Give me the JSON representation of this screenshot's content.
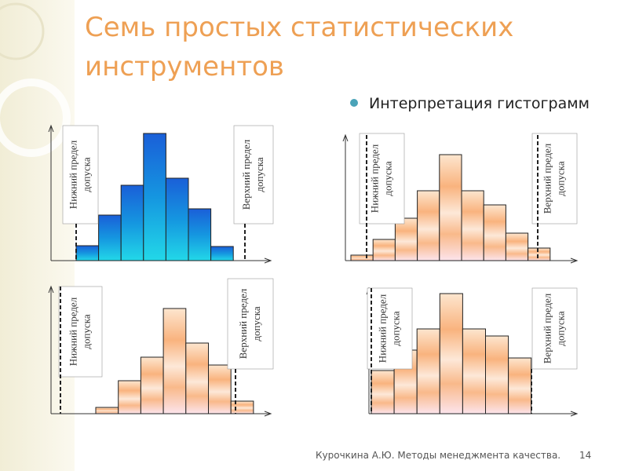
{
  "title": [
    "Семь простых статистических",
    "инструментов"
  ],
  "bullet": "Интерпретация гистограмм",
  "footer": "Курочкина А.Ю. Методы менеджмента качества.",
  "page_number": 14,
  "histograms": [
    {
      "values": [
        1.9,
        5.8,
        9.6,
        16.2,
        10.5,
        6.6,
        1.8
      ],
      "ylim": [
        0,
        17.2
      ],
      "color": "blue",
      "lower_limit_label": [
        "Нижний предел",
        "допуска"
      ],
      "upper_limit_label": [
        "Верхний предел",
        "допуска"
      ]
    },
    {
      "values": [
        0.7,
        2.7,
        5.4,
        8.9,
        13.5,
        8.9,
        7.1,
        3.5,
        1.6
      ],
      "ylim": [
        0,
        16
      ],
      "color": "orange",
      "lower_limit_label": [
        "Нижний предел",
        "допуска"
      ],
      "upper_limit_label": [
        "Верхний предел",
        "допуска"
      ]
    },
    {
      "values": [
        0.8,
        4.2,
        7.2,
        13.4,
        9,
        6.2,
        1.6
      ],
      "ylim": [
        0,
        16.2
      ],
      "color": "orange",
      "lower_limit_label": [
        "Нижний предел",
        "допуска"
      ],
      "upper_limit_label": [
        "Верхний предел",
        "допуска"
      ]
    },
    {
      "values": [
        5.5,
        8.1,
        10.8,
        15.3,
        10.8,
        9.9,
        7.1
      ],
      "ylim": [
        0,
        16
      ],
      "color": "orange",
      "lower_limit_label": [
        "Нижний предел",
        "допуска"
      ],
      "upper_limit_label": [
        "Верхний предел",
        "допуска"
      ]
    }
  ]
}
